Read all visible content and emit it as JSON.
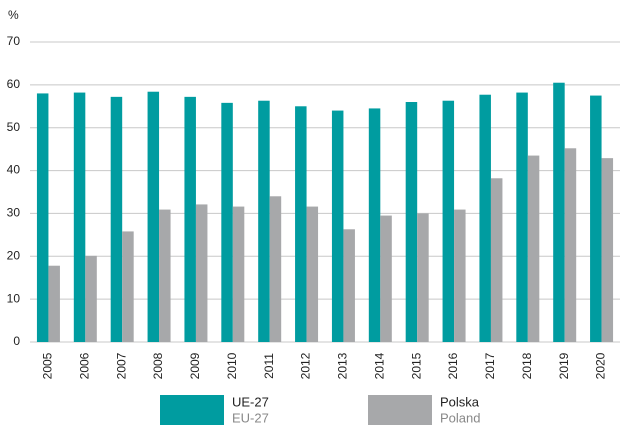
{
  "chart_data": {
    "type": "bar",
    "y_label": "%",
    "categories": [
      "2005",
      "2006",
      "2007",
      "2008",
      "2009",
      "2010",
      "2011",
      "2012",
      "2013",
      "2014",
      "2015",
      "2016",
      "2017",
      "2018",
      "2019",
      "2020"
    ],
    "series": [
      {
        "name": "UE-27",
        "name_en": "EU-27",
        "color": "#009ca0",
        "values": [
          58,
          58.2,
          57.2,
          58.4,
          57.2,
          55.8,
          56.3,
          55,
          54,
          54.5,
          56,
          56.3,
          57.7,
          58.2,
          60.5,
          57.5
        ]
      },
      {
        "name": "Polska",
        "name_en": "Poland",
        "color": "#a7a8aa",
        "values": [
          17.8,
          20.1,
          25.8,
          30.9,
          32.1,
          31.6,
          34,
          31.6,
          26.3,
          29.5,
          30,
          30.9,
          38.2,
          43.5,
          45.2,
          42.9
        ]
      }
    ],
    "ylim": [
      0,
      70
    ],
    "yticks": [
      0,
      10,
      20,
      30,
      40,
      50,
      60,
      70
    ],
    "grid": true
  }
}
